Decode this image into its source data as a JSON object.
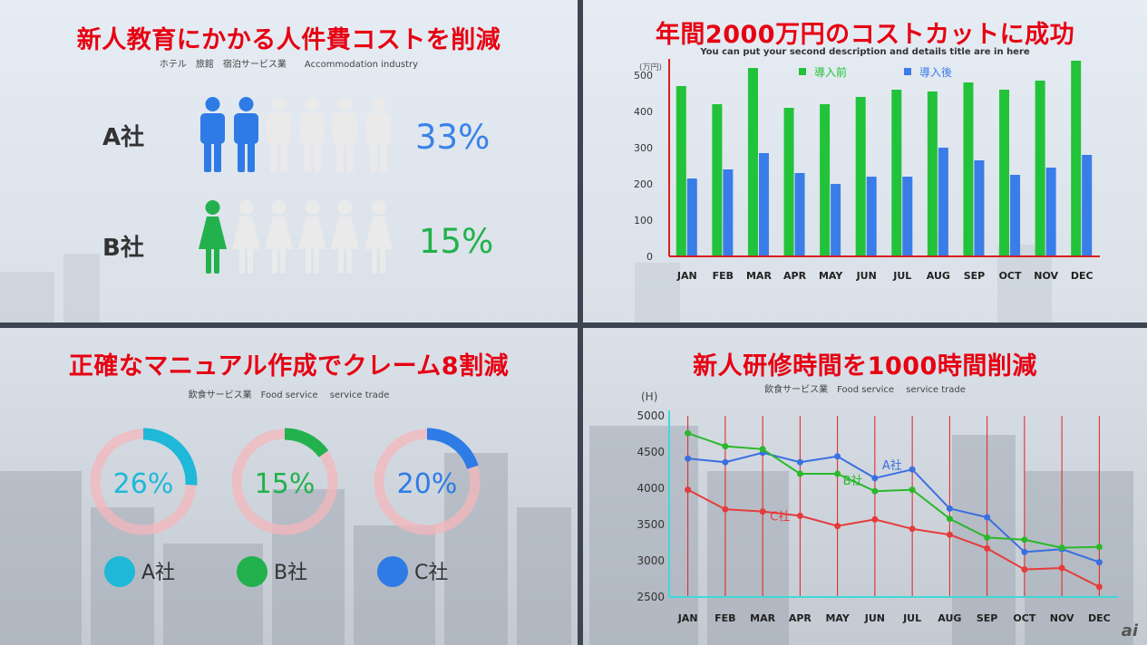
{
  "panel1": {
    "title": "新人教育にかかる人件費コストを削減",
    "subtitle": "ホテル　旅館　宿泊サービス業　　Accommodation industry",
    "rows": [
      {
        "label": "A社",
        "percent": "33%",
        "filled": 2,
        "total": 6,
        "color": "#2e7be6",
        "figure": "man"
      },
      {
        "label": "B社",
        "percent": "15%",
        "filled": 1,
        "total": 6,
        "color": "#22b14c",
        "figure": "woman"
      }
    ]
  },
  "panel2": {
    "title": "年間2000万円のコストカットに成功",
    "subtitle": "You can put your second description and details title are in here",
    "chart_data": {
      "type": "bar",
      "categories": [
        "JAN",
        "FEB",
        "MAR",
        "APR",
        "MAY",
        "JUN",
        "JUL",
        "AUG",
        "SEP",
        "OCT",
        "NOV",
        "DEC"
      ],
      "series": [
        {
          "name": "導入前",
          "color": "#22c33a",
          "values": [
            470,
            420,
            520,
            410,
            420,
            440,
            460,
            455,
            480,
            460,
            485,
            540
          ]
        },
        {
          "name": "導入後",
          "color": "#3a7de8",
          "values": [
            215,
            240,
            285,
            230,
            200,
            220,
            220,
            300,
            265,
            225,
            245,
            280
          ]
        }
      ],
      "ylabel": "(万円)",
      "ylim": [
        0,
        540
      ],
      "yticks": [
        0,
        100,
        200,
        300,
        400,
        500
      ],
      "legend": "top"
    }
  },
  "panel3": {
    "title": "正確なマニュアル作成でクレーム8割減",
    "subtitle": "飲食サービス業　Food service　 service trade",
    "chart_data": {
      "type": "pie",
      "items": [
        {
          "name": "A社",
          "value": 26,
          "label": "26%",
          "color": "#1fb8d8"
        },
        {
          "name": "B社",
          "value": 15,
          "label": "15%",
          "color": "#22b14c"
        },
        {
          "name": "C社",
          "value": 20,
          "label": "20%",
          "color": "#2e7be6"
        }
      ],
      "track_color": "#f4b7bb"
    }
  },
  "panel4": {
    "title": "新人研修時間を1000時間削減",
    "subtitle": "飲食サービス業　Food service　 service trade",
    "chart_data": {
      "type": "line",
      "categories": [
        "JAN",
        "FEB",
        "MAR",
        "APR",
        "MAY",
        "JUN",
        "JUL",
        "AUG",
        "SEP",
        "OCT",
        "NOV",
        "DEC"
      ],
      "ylabel": "(H)",
      "ylim": [
        2500,
        5000
      ],
      "yticks": [
        2500,
        3000,
        3500,
        4000,
        4500,
        5000
      ],
      "series": [
        {
          "name": "A社",
          "color": "#3a6fe0",
          "values": [
            4410,
            4360,
            4490,
            4360,
            4440,
            4140,
            4260,
            3720,
            3600,
            3120,
            3160,
            2980
          ]
        },
        {
          "name": "B社",
          "color": "#2bb82b",
          "values": [
            4760,
            4580,
            4540,
            4200,
            4200,
            3960,
            3980,
            3580,
            3320,
            3290,
            3180,
            3190
          ]
        },
        {
          "name": "C社",
          "color": "#e63b3b",
          "values": [
            3980,
            3710,
            3680,
            3620,
            3480,
            3570,
            3440,
            3360,
            3170,
            2880,
            2900,
            2640
          ]
        }
      ]
    }
  },
  "logo_text": "ai"
}
